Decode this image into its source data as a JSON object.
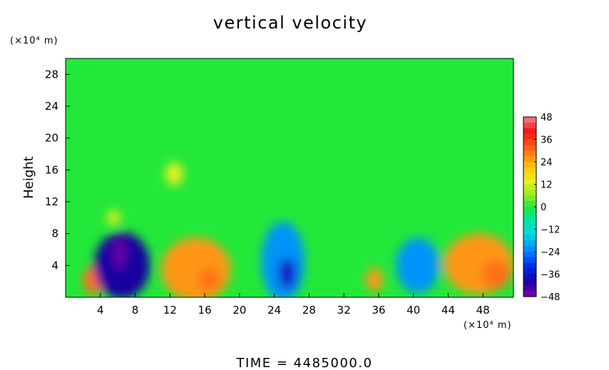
{
  "chart_data": {
    "type": "heatmap",
    "title": "vertical velocity",
    "ylabel": "Height",
    "y_unit": "(×10⁴ m)",
    "x_unit": "(×10⁴ m)",
    "xlim": [
      0,
      51.5
    ],
    "ylim": [
      0,
      30
    ],
    "x_ticks": [
      4,
      8,
      12,
      16,
      20,
      24,
      28,
      32,
      36,
      40,
      44,
      48
    ],
    "y_ticks": [
      4,
      8,
      12,
      16,
      20,
      24,
      28
    ],
    "colorbar_ticks": [
      48,
      36,
      24,
      12,
      0,
      -12,
      -24,
      -36,
      -48
    ],
    "colorbar_range": [
      -48,
      48
    ],
    "background_value": 0,
    "features": [
      {
        "kind": "updraft",
        "x": 3.2,
        "y": 2.2,
        "rx": 1.2,
        "ry": 1.8,
        "value": 30
      },
      {
        "kind": "downdraft",
        "x": 6.5,
        "y": 4.0,
        "rx": 3.2,
        "ry": 4.2,
        "value": -40
      },
      {
        "kind": "downdraft",
        "x": 6.2,
        "y": 5.5,
        "rx": 0.7,
        "ry": 2.0,
        "value": -46
      },
      {
        "kind": "updraft",
        "x": 15.0,
        "y": 3.5,
        "rx": 4.0,
        "ry": 4.0,
        "value": 26
      },
      {
        "kind": "updraft",
        "x": 16.5,
        "y": 2.2,
        "rx": 1.2,
        "ry": 1.4,
        "value": 30
      },
      {
        "kind": "updraft",
        "x": 12.5,
        "y": 15.5,
        "rx": 1.0,
        "ry": 1.5,
        "value": 14
      },
      {
        "kind": "downdraft",
        "x": 25.0,
        "y": 4.5,
        "rx": 2.5,
        "ry": 5.0,
        "value": -22
      },
      {
        "kind": "downdraft",
        "x": 25.5,
        "y": 3.0,
        "rx": 1.0,
        "ry": 2.0,
        "value": -36
      },
      {
        "kind": "updraft",
        "x": 35.5,
        "y": 2.2,
        "rx": 1.0,
        "ry": 1.5,
        "value": 26
      },
      {
        "kind": "downdraft",
        "x": 40.5,
        "y": 4.0,
        "rx": 2.5,
        "ry": 3.5,
        "value": -22
      },
      {
        "kind": "updraft",
        "x": 47.5,
        "y": 4.2,
        "rx": 4.0,
        "ry": 3.8,
        "value": 26
      },
      {
        "kind": "updraft",
        "x": 49.5,
        "y": 2.8,
        "rx": 1.6,
        "ry": 1.8,
        "value": 30
      },
      {
        "kind": "updraft",
        "x": 5.5,
        "y": 10.0,
        "rx": 0.8,
        "ry": 1.0,
        "value": 12
      }
    ]
  },
  "time_label": "TIME  =  4485000.0"
}
